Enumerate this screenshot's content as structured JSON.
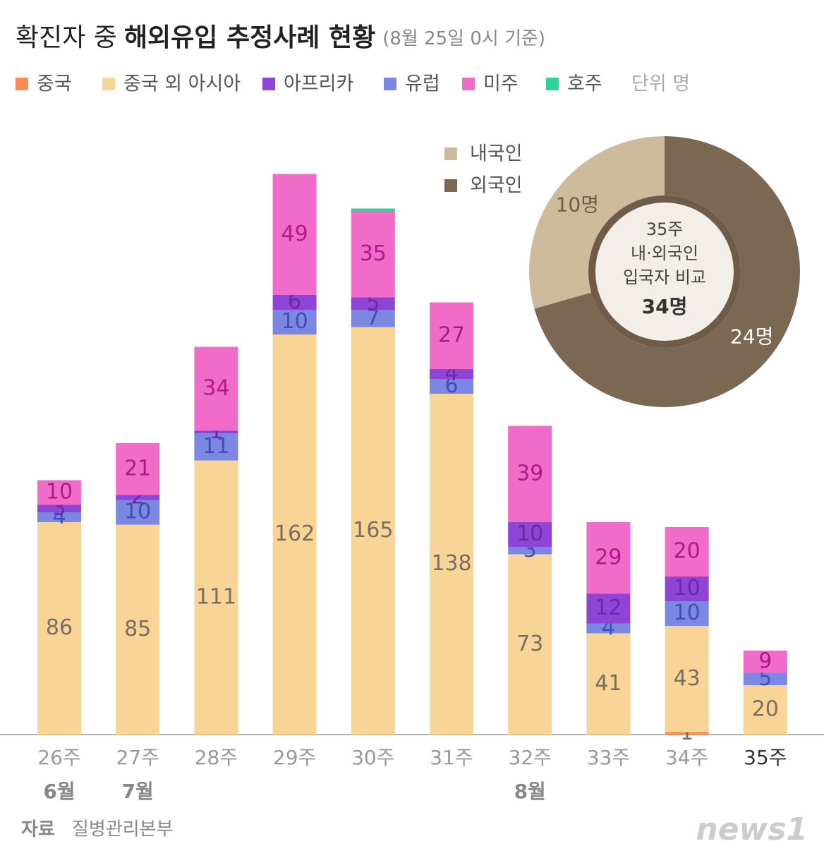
{
  "chart_data": [
    {
      "type": "bar",
      "stacked": true,
      "title_lead": "확진자 중",
      "title": "해외유입 추정사례 현황",
      "subtitle": "(8월 25일 0시 기준)",
      "unit": "단위 명",
      "categories": [
        "26주",
        "27주",
        "28주",
        "29주",
        "30주",
        "31주",
        "32주",
        "33주",
        "34주",
        "35주"
      ],
      "month_labels": [
        "6월",
        "7월",
        null,
        null,
        null,
        null,
        "8월",
        null,
        null,
        null
      ],
      "highlight": "35주",
      "ylim": [
        0,
        240
      ],
      "series": [
        {
          "name": "중국",
          "color": "#f98d4f",
          "label_color": "#7a6e60",
          "values": [
            0,
            0,
            0,
            0,
            0,
            0,
            0,
            0,
            1,
            0
          ]
        },
        {
          "name": "중국 외 아시아",
          "color": "#f8d597",
          "label_color": "#7a6e60",
          "values": [
            86,
            85,
            111,
            162,
            165,
            138,
            73,
            41,
            43,
            20
          ]
        },
        {
          "name": "유럽",
          "color": "#7b87e0",
          "label_color": "#3e4fb8",
          "values": [
            4,
            10,
            11,
            10,
            7,
            6,
            3,
            4,
            10,
            5
          ]
        },
        {
          "name": "아프리카",
          "color": "#8e44d4",
          "label_color": "#6a2aa6",
          "values": [
            3,
            2,
            1,
            6,
            5,
            4,
            10,
            12,
            10,
            0
          ]
        },
        {
          "name": "미주",
          "color": "#f06cc8",
          "label_color": "#b0198a",
          "values": [
            10,
            21,
            34,
            49,
            35,
            27,
            39,
            29,
            20,
            9
          ]
        },
        {
          "name": "호주",
          "color": "#2fd19b",
          "label_color": "#1a8a63",
          "show_labels": false,
          "values": [
            0,
            0,
            0,
            0,
            1,
            0,
            0,
            0,
            0,
            0
          ]
        }
      ],
      "legend_order": [
        0,
        1,
        3,
        2,
        4,
        5
      ],
      "source_label": "자료",
      "source": "질병관리본부",
      "logo": "news1"
    },
    {
      "type": "pie",
      "donut": true,
      "categories": [
        "내국인",
        "외국인"
      ],
      "values": [
        10,
        24
      ],
      "value_labels": [
        "10명",
        "24명"
      ],
      "colors": [
        "#cdbb9b",
        "#7b6852"
      ],
      "center_text": [
        "35주",
        "내·외국인",
        "입국자 비교"
      ],
      "center_value": 34,
      "center_label": "34명"
    }
  ]
}
